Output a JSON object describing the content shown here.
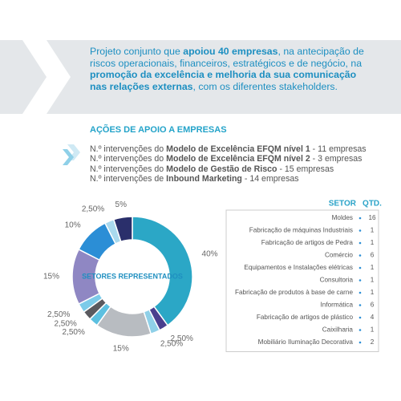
{
  "intro": [
    {
      "text": "Projeto conjunto que ",
      "bold": false
    },
    {
      "text": "apoiou 40 empresas",
      "bold": true
    },
    {
      "text": ", na antecipação de riscos operacionais, financeiros, estratégicos e de negócio, na ",
      "bold": false
    },
    {
      "text": "promoção da excelência e melhoria da sua comunicação nas relações externas",
      "bold": true
    },
    {
      "text": ", com os diferentes stakeholders.",
      "bold": false
    }
  ],
  "heading": "AÇÕES DE APOIO A EMPRESAS",
  "actions": [
    [
      {
        "text": "N.º intervenções do ",
        "bold": false
      },
      {
        "text": "Modelo de Excelência EFQM nível 1",
        "bold": true
      },
      {
        "text": " - 11 empresas",
        "bold": false
      }
    ],
    [
      {
        "text": "N.º intervenções do ",
        "bold": false
      },
      {
        "text": "Modelo de Excelência EFQM nível 2",
        "bold": true
      },
      {
        "text": " - 3 empresas",
        "bold": false
      }
    ],
    [
      {
        "text": "N.º intervenções do ",
        "bold": false
      },
      {
        "text": "Modelo de Gestão de Risco",
        "bold": true
      },
      {
        "text": " - 15 empresas",
        "bold": false
      }
    ],
    [
      {
        "text": "N.º intervenções de ",
        "bold": false
      },
      {
        "text": "Inbound Marketing",
        "bold": true
      },
      {
        "text": " - 14 empresas",
        "bold": false
      }
    ]
  ],
  "chart_data": {
    "type": "donut",
    "center_label": "SETORES REPRESENTADOS",
    "values": [
      40,
      2.5,
      2.5,
      15,
      2.5,
      2.5,
      2.5,
      15,
      10,
      2.5,
      5
    ],
    "value_labels": [
      "40%",
      "2,50%",
      "2,50%",
      "15%",
      "2,50%",
      "2,50%",
      "2,50%",
      "15%",
      "10%",
      "2,50%",
      "5%"
    ],
    "colors": [
      "#2ba7c6",
      "#4a3f8e",
      "#8fd0e8",
      "#b8bcc1",
      "#5cc0e0",
      "#5a5a5f",
      "#7ccbe9",
      "#8f87c3",
      "#2b8ed6",
      "#a9d9ee",
      "#2a2f6b"
    ]
  },
  "table": {
    "header": [
      "SETOR",
      "QTD."
    ],
    "rows": [
      [
        "Moldes",
        "16"
      ],
      [
        "Fabricação de máquinas Industriais",
        "1"
      ],
      [
        "Fabricação de artigos de Pedra",
        "1"
      ],
      [
        "Comércio",
        "6"
      ],
      [
        "Equipamentos e Instalações elétricas",
        "1"
      ],
      [
        "Consultoria",
        "1"
      ],
      [
        "Fabricação de produtos à base de carne",
        "1"
      ],
      [
        "Informática",
        "6"
      ],
      [
        "Fabricação de artigos de plástico",
        "4"
      ],
      [
        "Caixilharia",
        "1"
      ],
      [
        "Mobiliário Iluminação Decorativa",
        "2"
      ]
    ]
  }
}
